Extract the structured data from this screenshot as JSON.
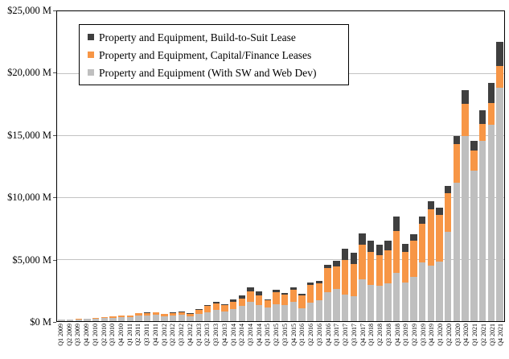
{
  "chart_data": {
    "type": "bar",
    "stacked": true,
    "title": "",
    "xlabel": "",
    "ylabel": "",
    "ylim": [
      0,
      25000
    ],
    "grid": true,
    "legend_position": "top-left-inside",
    "y_ticks": [
      {
        "value": 25000,
        "label": "$25,000 M"
      },
      {
        "value": 20000,
        "label": "$20,000 M"
      },
      {
        "value": 15000,
        "label": "$15,000 M"
      },
      {
        "value": 10000,
        "label": "$10,000 M"
      },
      {
        "value": 5000,
        "label": "$5,000 M"
      },
      {
        "value": 0,
        "label": "$0 M"
      }
    ],
    "categories": [
      "Q1 2009",
      "Q2 2009",
      "Q3 2009",
      "Q4 2009",
      "Q1 2010",
      "Q2 2010",
      "Q3 2010",
      "Q4 2010",
      "Q1 2011",
      "Q2 2011",
      "Q3 2011",
      "Q4 2011",
      "Q1 2012",
      "Q2 2012",
      "Q3 2012",
      "Q4 2012",
      "Q1 2013",
      "Q2 2013",
      "Q3 2013",
      "Q4 2013",
      "Q1 2014",
      "Q2 2014",
      "Q3 2014",
      "Q4 2014",
      "Q1 2015",
      "Q2 2015",
      "Q3 2015",
      "Q4 2015",
      "Q1 2016",
      "Q2 2016",
      "Q3 2016",
      "Q4 2016",
      "Q1 2017",
      "Q2 2017",
      "Q3 2017",
      "Q4 2017",
      "Q1 2018",
      "Q2 2018",
      "Q3 2018",
      "Q4 2018",
      "Q1 2019",
      "Q2 2019",
      "Q3 2019",
      "Q4 2019",
      "Q1 2020",
      "Q2 2020",
      "Q3 2020",
      "Q4 2020",
      "Q1 2021",
      "Q2 2021",
      "Q3 2021",
      "Q4 2021"
    ],
    "series": [
      {
        "name": "Property and Equipment (With SW and Web Dev)",
        "color": "#BFBFBF",
        "values": [
          115,
          100,
          150,
          165,
          200,
          235,
          265,
          300,
          335,
          440,
          470,
          500,
          400,
          460,
          505,
          375,
          590,
          730,
          885,
          775,
          950,
          1205,
          1530,
          1310,
          1100,
          1375,
          1310,
          1530,
          1035,
          1505,
          1680,
          2370,
          2585,
          2150,
          2045,
          3380,
          2950,
          2840,
          3055,
          3875,
          3120,
          3555,
          4735,
          4460,
          4780,
          7215,
          11155,
          14905,
          12165,
          14535,
          15870,
          18845
        ]
      },
      {
        "name": "Property and Equipment, Capital/Finance Leases",
        "color": "#F79646",
        "values": [
          35,
          30,
          45,
          50,
          80,
          95,
          120,
          130,
          140,
          185,
          200,
          210,
          180,
          220,
          240,
          230,
          330,
          480,
          535,
          495,
          580,
          645,
          860,
          800,
          580,
          950,
          865,
          1010,
          1015,
          1400,
          1375,
          1895,
          1830,
          2760,
          2585,
          2760,
          2650,
          2475,
          2650,
          3380,
          2480,
          2970,
          3125,
          4585,
          3765,
          3085,
          3150,
          2650,
          1615,
          1400,
          1720,
          1720
        ]
      },
      {
        "name": "Property and Equipment, Build-to-Suit Lease",
        "color": "#3F3F3F",
        "values": [
          0,
          0,
          0,
          0,
          0,
          0,
          0,
          0,
          0,
          20,
          20,
          20,
          20,
          50,
          30,
          20,
          30,
          105,
          170,
          105,
          215,
          260,
          320,
          280,
          65,
          215,
          105,
          170,
          130,
          215,
          215,
          300,
          450,
          950,
          860,
          925,
          905,
          860,
          795,
          1205,
          645,
          515,
          600,
          600,
          605,
          600,
          645,
          1070,
          800,
          1070,
          1640,
          2000
        ]
      }
    ],
    "legend_entries": [
      {
        "label": "Property and Equipment, Build-to-Suit Lease",
        "color": "#3F3F3F"
      },
      {
        "label": "Property and Equipment, Capital/Finance Leases",
        "color": "#F79646"
      },
      {
        "label": "Property and Equipment (With SW and Web Dev)",
        "color": "#BFBFBF"
      }
    ],
    "colors": {
      "gridline": "#C3C3C3",
      "plot_border": "#000000",
      "background": "#FFFFFF"
    }
  }
}
